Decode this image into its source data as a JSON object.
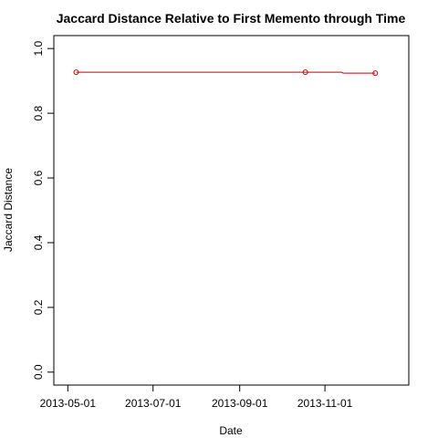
{
  "chart_data": {
    "type": "line",
    "title": "Jaccard Distance Relative to First Memento through Time",
    "xlabel": "Date",
    "ylabel": "Jaccard Distance",
    "x_ticks": [
      "2013-05-01",
      "2013-07-01",
      "2013-09-01",
      "2013-11-01"
    ],
    "y_ticks": [
      0.0,
      0.2,
      0.4,
      0.6,
      0.8,
      1.0
    ],
    "xlim": [
      "2013-04-21",
      "2013-12-31"
    ],
    "ylim": [
      -0.04,
      1.04
    ],
    "grid": false,
    "series": [
      {
        "color": "#cc0000",
        "line": [
          {
            "x": "2013-05-07",
            "y": 0.927
          },
          {
            "x": "2013-10-18",
            "y": 0.927
          },
          {
            "x": "2013-11-13",
            "y": 0.927
          },
          {
            "x": "2013-11-14",
            "y": 0.924
          },
          {
            "x": "2013-12-07",
            "y": 0.924
          }
        ],
        "points": [
          {
            "x": "2013-05-07",
            "y": 0.927
          },
          {
            "x": "2013-10-18",
            "y": 0.927
          },
          {
            "x": "2013-12-07",
            "y": 0.924
          }
        ]
      }
    ]
  }
}
